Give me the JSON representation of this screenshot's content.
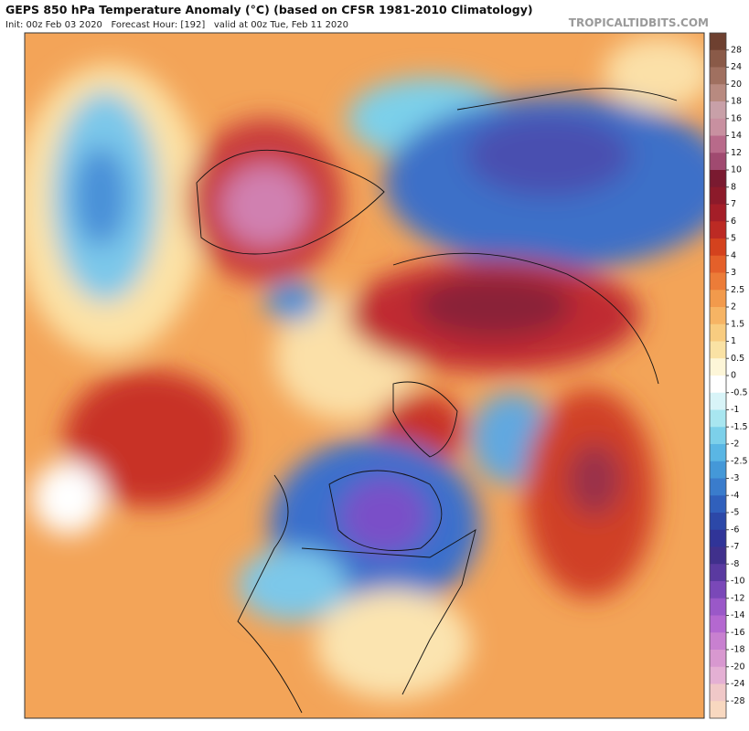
{
  "header": {
    "title": "GEPS 850 hPa Temperature Anomaly (°C) (based on CFSR 1981-2010 Climatology)",
    "subtitle": "Init: 00z Feb 03 2020   Forecast Hour: [192]   valid at 00z Tue, Feb 11 2020",
    "watermark": "TROPICALTIDBITS.COM"
  },
  "colorbar": {
    "labels": [
      "28",
      "24",
      "20",
      "18",
      "16",
      "14",
      "12",
      "10",
      "8",
      "7",
      "6",
      "5",
      "4",
      "3",
      "2.5",
      "2",
      "1.5",
      "1",
      "0.5",
      "0",
      "-0.5",
      "-1",
      "-1.5",
      "-2",
      "-2.5",
      "-3",
      "-4",
      "-5",
      "-6",
      "-7",
      "-8",
      "-10",
      "-12",
      "-14",
      "-16",
      "-18",
      "-20",
      "-24",
      "-28"
    ],
    "colors": [
      "#6e4030",
      "#8a5a48",
      "#a07060",
      "#b88a80",
      "#c8a0a8",
      "#c890a0",
      "#b86a8a",
      "#a04a70",
      "#7a1a30",
      "#8c1a2a",
      "#a41e28",
      "#bc2a24",
      "#d4421e",
      "#e4602a",
      "#ec7c38",
      "#f29a4c",
      "#f6b464",
      "#f8cc80",
      "#fae2a4",
      "#fdf6d8",
      "#ffffff",
      "#d8f4f8",
      "#a8e6f0",
      "#7cd0ea",
      "#5ab6e4",
      "#4498d8",
      "#3a7ccc",
      "#3060bc",
      "#2c48a8",
      "#303498",
      "#40308c",
      "#5a3aa0",
      "#7a48b8",
      "#9a58c8",
      "#b468d0",
      "#c880d0",
      "#d898d0",
      "#e4b0d4",
      "#f0c8c8",
      "#f8d8c0"
    ]
  }
}
